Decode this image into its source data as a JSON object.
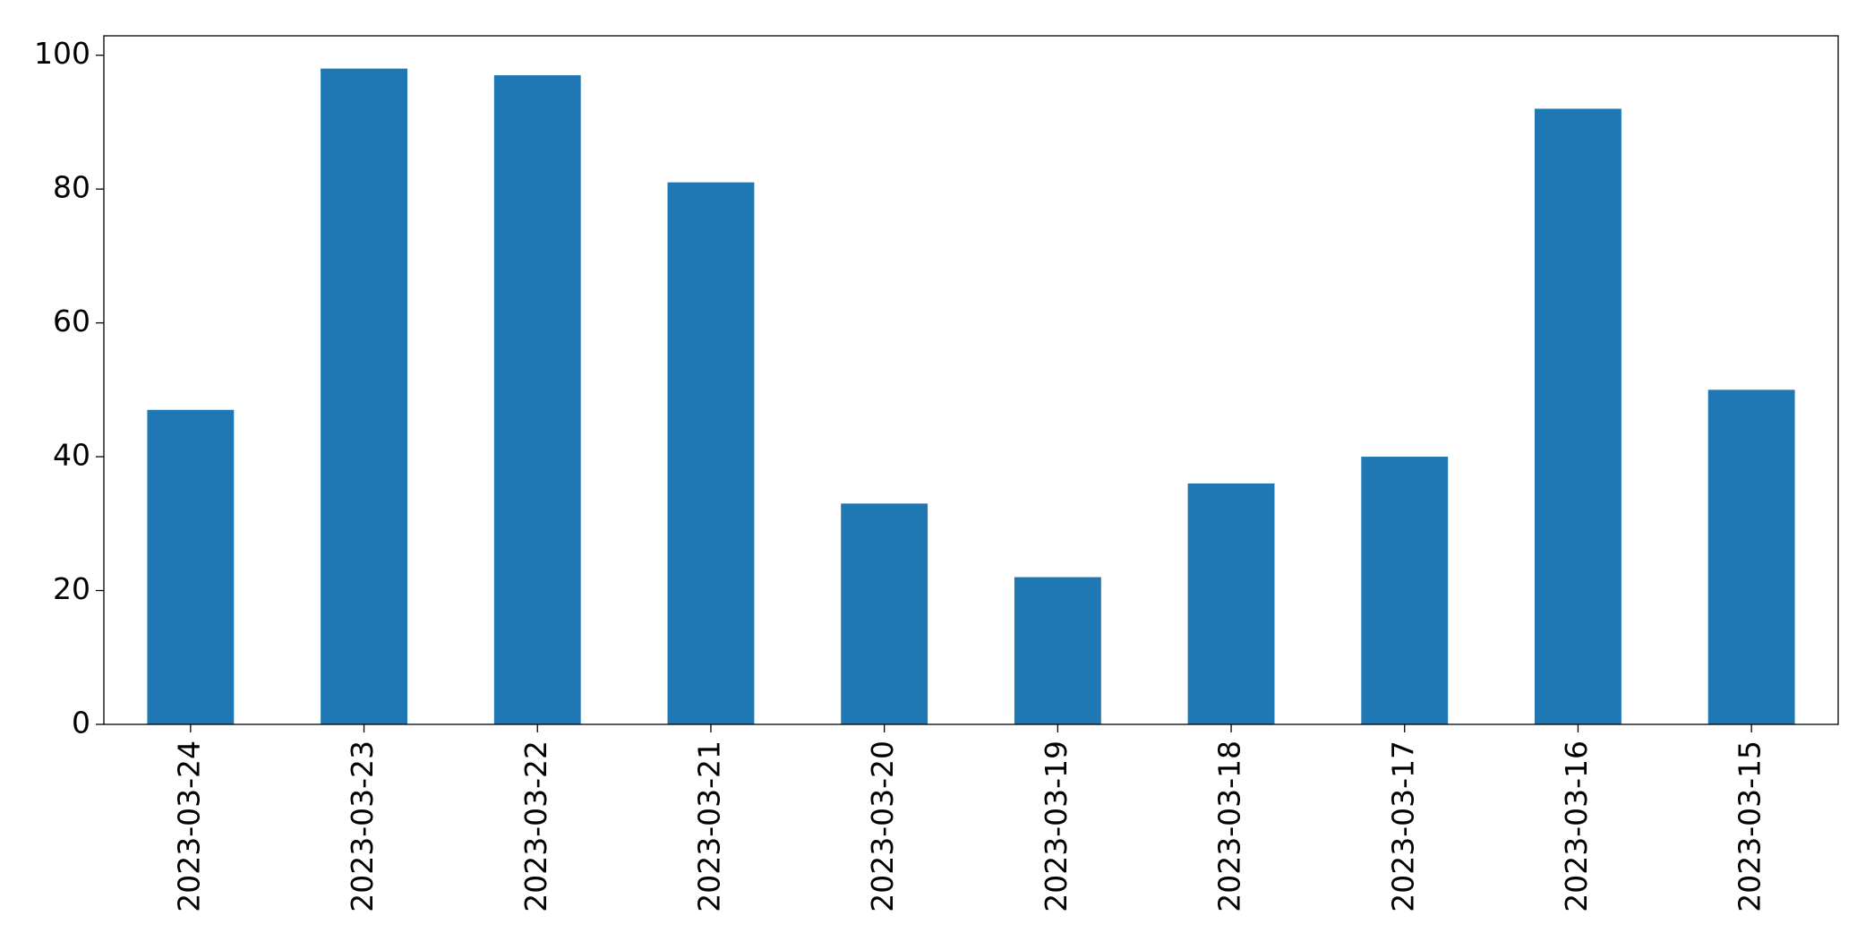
{
  "chart_data": {
    "type": "bar",
    "categories": [
      "2023-03-24",
      "2023-03-23",
      "2023-03-22",
      "2023-03-21",
      "2023-03-20",
      "2023-03-19",
      "2023-03-18",
      "2023-03-17",
      "2023-03-16",
      "2023-03-15"
    ],
    "values": [
      47,
      98,
      97,
      81,
      33,
      22,
      36,
      40,
      92,
      50
    ],
    "color": "#1f77b4",
    "ylim": [
      0,
      102.9
    ],
    "yticks": [
      0,
      20,
      40,
      60,
      80,
      100
    ],
    "grid": false
  }
}
